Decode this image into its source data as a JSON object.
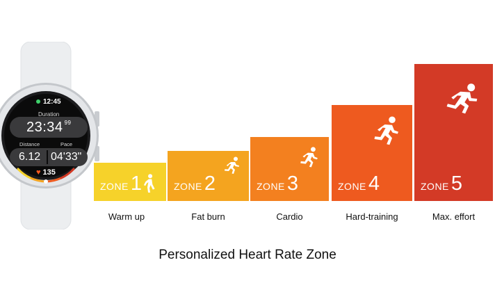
{
  "watch": {
    "clock": "12:45",
    "duration_label": "Duration",
    "duration_value": "23:34",
    "duration_fraction": "99",
    "distance_label": "Distance",
    "distance_value": "6.12",
    "pace_label": "Pace",
    "pace_value": "04'33\"",
    "heart_rate": "135"
  },
  "zones": [
    {
      "zone_word": "ZONE",
      "number": "1",
      "name": "Warm up",
      "color": "#f6d22a"
    },
    {
      "zone_word": "ZONE",
      "number": "2",
      "name": "Fat burn",
      "color": "#f4a41f"
    },
    {
      "zone_word": "ZONE",
      "number": "3",
      "name": "Cardio",
      "color": "#f3801f"
    },
    {
      "zone_word": "ZONE",
      "number": "4",
      "name": "Hard-training",
      "color": "#ee5a1f"
    },
    {
      "zone_word": "ZONE",
      "number": "5",
      "name": "Max. effort",
      "color": "#d33a26"
    }
  ],
  "caption": "Personalized Heart Rate Zone"
}
